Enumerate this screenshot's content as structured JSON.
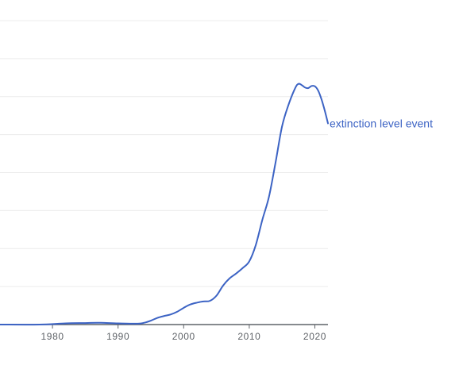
{
  "chart_data": {
    "type": "line",
    "title": "",
    "xlabel": "",
    "ylabel": "",
    "xlim": [
      1972,
      2022
    ],
    "ylim": [
      0,
      1
    ],
    "grid": true,
    "x_ticks": [
      1980,
      1990,
      2000,
      2010,
      2020
    ],
    "tick_labels": [
      "1980",
      "1990",
      "2000",
      "2010",
      "2020"
    ],
    "gridline_count": 8,
    "series": [
      {
        "name": "extinction level event",
        "color": "#3c63c4",
        "x": [
          1972,
          1978,
          1982,
          1985,
          1987,
          1990,
          1993,
          1994,
          1995,
          1996,
          1997,
          1998,
          1999,
          2000,
          2001,
          2002,
          2003,
          2004,
          2005,
          2006,
          2007,
          2008,
          2009,
          2010,
          2011,
          2012,
          2013,
          2014,
          2015,
          2016,
          2017,
          2017.5,
          2018,
          2018.5,
          2019,
          2019.5,
          2020,
          2020.5,
          2021,
          2021.5,
          2022
        ],
        "values": [
          0.0,
          0.0,
          0.004,
          0.005,
          0.006,
          0.004,
          0.003,
          0.006,
          0.013,
          0.022,
          0.028,
          0.033,
          0.042,
          0.055,
          0.066,
          0.072,
          0.076,
          0.078,
          0.095,
          0.128,
          0.152,
          0.168,
          0.186,
          0.208,
          0.262,
          0.345,
          0.42,
          0.532,
          0.652,
          0.724,
          0.778,
          0.792,
          0.788,
          0.78,
          0.778,
          0.785,
          0.784,
          0.77,
          0.742,
          0.705,
          0.662
        ]
      }
    ]
  }
}
